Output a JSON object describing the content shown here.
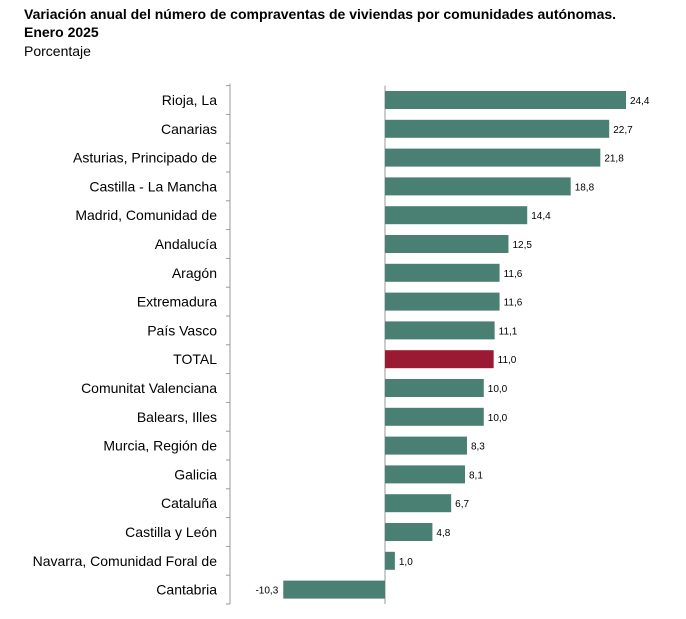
{
  "title_line1": "Variación anual del número de compraventas de viviendas por comunidades autónomas.",
  "title_line2": "Enero 2025",
  "subtitle": "Porcentaje",
  "colors": {
    "default_bar": "#4a7f73",
    "highlight_bar": "#9a1a33",
    "axis": "#999999"
  },
  "chart_data": {
    "type": "bar",
    "orientation": "horizontal",
    "highlight_category": "TOTAL",
    "categories": [
      "Rioja, La",
      "Canarias",
      "Asturias, Principado de",
      "Castilla - La Mancha",
      "Madrid, Comunidad de",
      "Andalucía",
      "Aragón",
      "Extremadura",
      "País Vasco",
      "TOTAL",
      "Comunitat Valenciana",
      "Balears, Illes",
      "Murcia, Región de",
      "Galicia",
      "Cataluña",
      "Castilla y León",
      "Navarra, Comunidad Foral de",
      "Cantabria"
    ],
    "values": [
      24.4,
      22.7,
      21.8,
      18.8,
      14.4,
      12.5,
      11.6,
      11.6,
      11.1,
      11.0,
      10.0,
      10.0,
      8.3,
      8.1,
      6.7,
      4.8,
      1.0,
      -10.3
    ],
    "value_labels": [
      "24,4",
      "22,7",
      "21,8",
      "18,8",
      "14,4",
      "12,5",
      "11,6",
      "11,6",
      "11,1",
      "11,0",
      "10,0",
      "10,0",
      "8,3",
      "8,1",
      "6,7",
      "4,8",
      "1,0",
      "-10,3"
    ],
    "xlim": [
      -15,
      25
    ],
    "grid": false,
    "legend": false
  }
}
